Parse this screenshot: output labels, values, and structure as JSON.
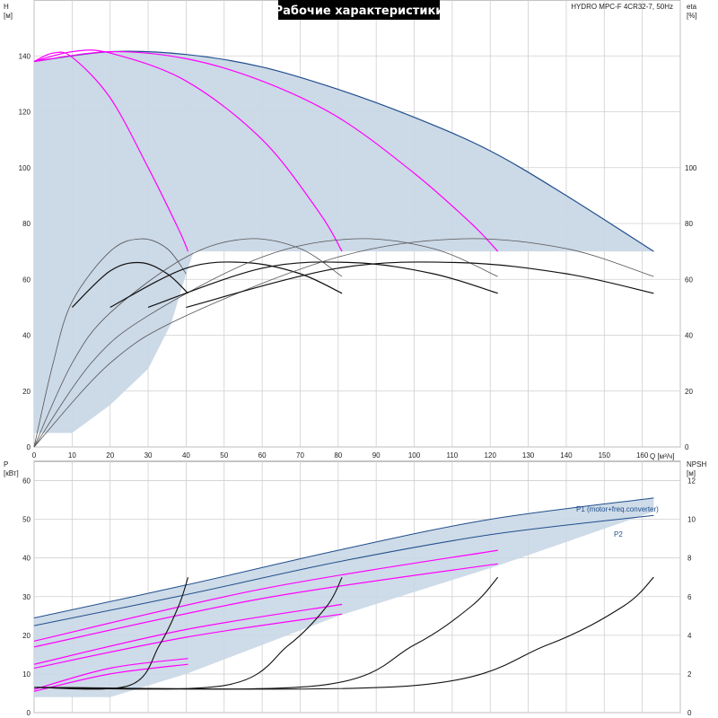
{
  "chart_data": [
    {
      "type": "line",
      "title": "Рабочие характеристики",
      "subtitle": "HYDRO MPC-F 4CR32-7, 50Hz",
      "ylabel_left": [
        "H",
        "[м]"
      ],
      "ylabel_right": [
        "eta",
        "[%]"
      ],
      "xlabel": "Q [м³/ч]",
      "xlim": [
        0,
        170
      ],
      "ylim": [
        0,
        160
      ],
      "y2lim": [
        0,
        160
      ],
      "xticks": [
        0,
        10,
        20,
        30,
        40,
        50,
        60,
        70,
        80,
        90,
        100,
        110,
        120,
        130,
        140,
        150,
        160
      ],
      "yticks": [
        0,
        20,
        40,
        60,
        80,
        100,
        120,
        140
      ],
      "y2ticks": [
        0,
        20,
        40,
        60,
        80,
        100
      ],
      "grid": true,
      "envelope_color": "#c9d7e6",
      "colors": {
        "envelope_edge": "#1f4e8c",
        "magenta": "#ff00ff",
        "black": "#111111",
        "gray": "#666666"
      },
      "series": [
        {
          "style": "envelope",
          "x": [
            0,
            20,
            40,
            60,
            80,
            100,
            120,
            140,
            163
          ],
          "y": [
            138,
            141.5,
            140.5,
            136,
            128,
            118,
            106,
            90,
            70
          ]
        },
        {
          "style": "magenta",
          "x": [
            0,
            5,
            10,
            20,
            30,
            38,
            40.5
          ],
          "y": [
            138,
            141,
            139.5,
            125,
            100,
            78,
            70
          ]
        },
        {
          "style": "magenta",
          "x": [
            0,
            10,
            20,
            40,
            60,
            75,
            81
          ],
          "y": [
            138,
            141.5,
            141,
            131,
            110,
            84,
            70
          ]
        },
        {
          "style": "magenta",
          "x": [
            0,
            20,
            40,
            60,
            80,
            100,
            115,
            122
          ],
          "y": [
            138,
            141.5,
            139,
            131,
            118,
            98,
            80,
            70
          ]
        },
        {
          "style": "gray",
          "x": [
            0,
            5,
            10,
            20,
            28,
            35,
            40
          ],
          "y": [
            0,
            30,
            52,
            70,
            74.5,
            71,
            62
          ]
        },
        {
          "style": "black",
          "x": [
            10,
            20,
            28,
            35,
            40.5
          ],
          "y": [
            50,
            63,
            66,
            62,
            55
          ]
        },
        {
          "style": "gray",
          "x": [
            0,
            10,
            20,
            40,
            56,
            70,
            81
          ],
          "y": [
            0,
            30,
            48,
            68,
            74.5,
            71,
            61
          ]
        },
        {
          "style": "black",
          "x": [
            20,
            40,
            56,
            70,
            81
          ],
          "y": [
            50,
            64,
            66,
            62,
            55
          ]
        },
        {
          "style": "gray",
          "x": [
            0,
            15,
            30,
            60,
            84,
            105,
            122
          ],
          "y": [
            0,
            30,
            47,
            68,
            74.5,
            71,
            61
          ]
        },
        {
          "style": "black",
          "x": [
            30,
            60,
            84,
            105,
            122
          ],
          "y": [
            50,
            64,
            66,
            62,
            55
          ]
        },
        {
          "style": "gray",
          "x": [
            0,
            20,
            40,
            80,
            112,
            140,
            163
          ],
          "y": [
            0,
            30,
            47,
            68,
            74.5,
            71,
            61
          ]
        },
        {
          "style": "black",
          "x": [
            40,
            80,
            112,
            140,
            163
          ],
          "y": [
            50,
            64,
            66,
            62,
            55
          ]
        }
      ]
    },
    {
      "type": "line",
      "ylabel_left": [
        "P",
        "[кВт]"
      ],
      "ylabel_right": [
        "NPSH",
        "[м]"
      ],
      "xlim": [
        0,
        170
      ],
      "ylim": [
        0,
        65
      ],
      "y2lim": [
        0,
        13
      ],
      "yticks": [
        0,
        10,
        20,
        30,
        40,
        50,
        60
      ],
      "y2ticks": [
        0,
        2,
        4,
        6,
        8,
        10,
        12
      ],
      "grid": true,
      "legend": [
        "P1 (motor+freq.converter)",
        "P2"
      ],
      "series": [
        {
          "name": "P1 (motor+freq.converter)",
          "style": "blue",
          "x": [
            0,
            40,
            80,
            120,
            163
          ],
          "y": [
            24.5,
            33,
            42,
            50,
            55.5
          ]
        },
        {
          "name": "P2",
          "style": "blue",
          "x": [
            0,
            40,
            80,
            120,
            163
          ],
          "y": [
            22.5,
            30.5,
            39,
            46,
            51
          ]
        },
        {
          "style": "magenta",
          "x": [
            0,
            20,
            40.5
          ],
          "y": [
            6,
            11.5,
            14
          ]
        },
        {
          "style": "magenta",
          "x": [
            0,
            20,
            40.5
          ],
          "y": [
            5.5,
            10,
            12.5
          ]
        },
        {
          "style": "magenta",
          "x": [
            0,
            40,
            81
          ],
          "y": [
            12.5,
            21.5,
            28
          ]
        },
        {
          "style": "magenta",
          "x": [
            0,
            40,
            81
          ],
          "y": [
            11.5,
            19.5,
            25.5
          ]
        },
        {
          "style": "magenta",
          "x": [
            0,
            60,
            122
          ],
          "y": [
            18.5,
            32,
            42
          ]
        },
        {
          "style": "magenta",
          "x": [
            0,
            60,
            122
          ],
          "y": [
            17,
            29.5,
            38.5
          ]
        },
        {
          "style": "npsh",
          "x": [
            0,
            25,
            33,
            38,
            40.5
          ],
          "y": [
            1.3,
            1.4,
            3.5,
            5.5,
            7
          ]
        },
        {
          "style": "npsh",
          "x": [
            0,
            50,
            67,
            77,
            81
          ],
          "y": [
            1.3,
            1.4,
            3.5,
            5.5,
            7
          ]
        },
        {
          "style": "npsh",
          "x": [
            0,
            75,
            100,
            115,
            122
          ],
          "y": [
            1.3,
            1.4,
            3.5,
            5.5,
            7
          ]
        },
        {
          "style": "npsh",
          "x": [
            0,
            100,
            135,
            155,
            163
          ],
          "y": [
            1.3,
            1.4,
            3.5,
            5.5,
            7
          ]
        }
      ]
    }
  ]
}
